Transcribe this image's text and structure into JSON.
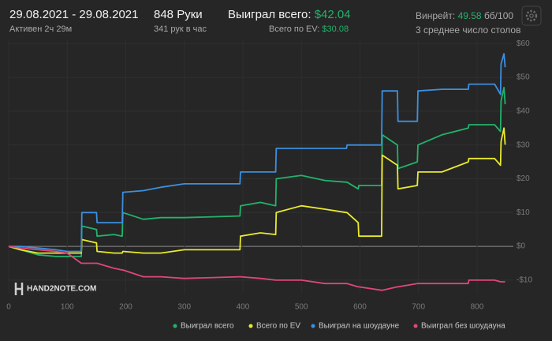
{
  "header": {
    "date_range": "29.08.2021 - 29.08.2021",
    "active": "Активен 2ч 29м",
    "hands": "848 Руки",
    "hands_per_hour": "341 рук в час",
    "won_label": "Выиграл всего:",
    "won_value": "$42.04",
    "ev_label": "Всего по EV:",
    "ev_value": "$30.08",
    "winrate_label": "Винрейт:",
    "winrate_value": "49.58",
    "winrate_unit": "бб/100",
    "tables": "3 среднее число столов"
  },
  "logo": "HAND2NOTE.COM",
  "chart_data": {
    "type": "line",
    "x": [
      0,
      20,
      50,
      80,
      100,
      124,
      125,
      150,
      151,
      180,
      194,
      195,
      230,
      260,
      300,
      395,
      396,
      430,
      456,
      457,
      500,
      540,
      577,
      578,
      597,
      598,
      637,
      638,
      664,
      665,
      698,
      699,
      740,
      785,
      786,
      830,
      840,
      841,
      846,
      848
    ],
    "series": [
      {
        "name": "Выиграл всего",
        "color": "#21b36b",
        "values": [
          0,
          -1,
          -2.5,
          -3,
          -3,
          -3,
          6,
          5,
          3,
          3.5,
          3,
          10,
          8,
          8.5,
          8.5,
          9,
          12,
          13,
          12,
          20,
          21,
          19.5,
          19,
          19,
          17,
          18,
          18,
          33,
          30,
          23,
          25,
          30,
          33,
          35,
          36,
          36,
          34,
          43,
          47,
          42.04
        ]
      },
      {
        "name": "Всего по EV",
        "color": "#eaea2e",
        "values": [
          0,
          -1,
          -2,
          -2,
          -2,
          -2,
          2,
          1,
          -1.5,
          -2,
          -2,
          -1.5,
          -2,
          -2,
          -1,
          -1,
          3,
          4,
          3.5,
          10,
          12,
          11,
          10,
          10,
          7,
          3,
          3,
          27,
          24,
          17,
          18,
          22,
          22,
          25,
          26,
          26,
          24,
          31,
          35,
          30.08
        ]
      },
      {
        "name": "Выиграл на шоудауне",
        "color": "#3d8fe0",
        "values": [
          0,
          0,
          -0.5,
          -1,
          -1.5,
          -1.5,
          10,
          10,
          7,
          7,
          7,
          16,
          16.5,
          17.5,
          18.5,
          18.5,
          22,
          22,
          22,
          29,
          29,
          29,
          29,
          30,
          30,
          30,
          30,
          46,
          46,
          37,
          37,
          46,
          46.5,
          46.5,
          48,
          48,
          45,
          54,
          57,
          53
        ]
      },
      {
        "name": "Выиграл без шоудауна",
        "color": "#e0467c",
        "values": [
          0,
          -0.5,
          -1,
          -1.5,
          -2,
          -5,
          -5,
          -5,
          -5,
          -6.5,
          -7,
          -7,
          -9,
          -9,
          -9.5,
          -9,
          -9,
          -9.5,
          -10,
          -10,
          -10,
          -11,
          -11,
          -11,
          -12,
          -12,
          -13,
          -13,
          -12,
          -12,
          -11,
          -11,
          -11,
          -11,
          -10,
          -10,
          -10.5,
          -10.5,
          -10.5,
          -10.5
        ]
      }
    ],
    "xlim": [
      0,
      862
    ],
    "xticks": [
      0,
      100,
      200,
      300,
      400,
      500,
      600,
      700,
      800
    ],
    "ylim": [
      -14,
      61
    ],
    "yticks": [
      {
        "value": -10,
        "label": "-$10"
      },
      {
        "value": 0,
        "label": "$0"
      },
      {
        "value": 10,
        "label": "$10"
      },
      {
        "value": 20,
        "label": "$20"
      },
      {
        "value": 30,
        "label": "$30"
      },
      {
        "value": 40,
        "label": "$40"
      },
      {
        "value": 50,
        "label": "$50"
      },
      {
        "value": 60,
        "label": "$60"
      }
    ],
    "grid": true
  }
}
